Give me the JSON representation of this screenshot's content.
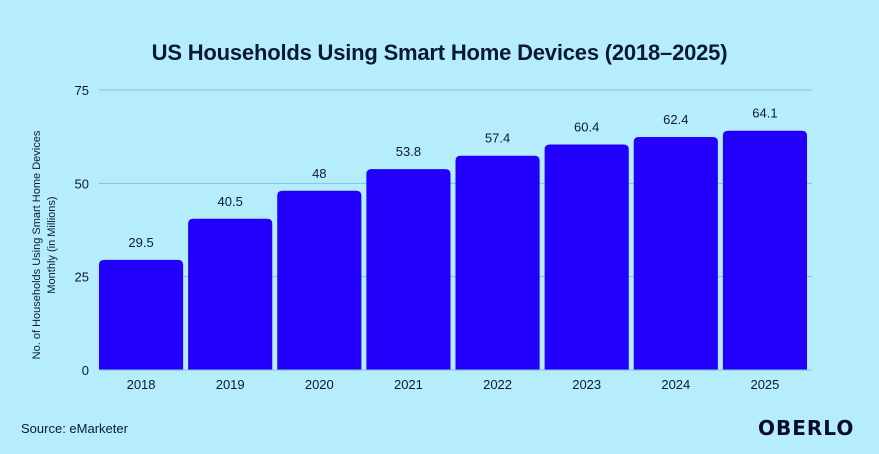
{
  "chart_data": {
    "type": "bar",
    "title": "US Households Using Smart Home Devices (2018–2025)",
    "xlabel": "",
    "ylabel": "No. of Households Using Smart Home Devices Monthly (in Millions)",
    "categories": [
      "2018",
      "2019",
      "2020",
      "2021",
      "2022",
      "2023",
      "2024",
      "2025"
    ],
    "values": [
      29.5,
      40.5,
      48,
      53.8,
      57.4,
      60.4,
      62.4,
      64.1
    ],
    "data_labels": [
      "29.5",
      "40.5",
      "48",
      "53.8",
      "57.4",
      "60.4",
      "62.4",
      "64.1"
    ],
    "ylim": [
      0,
      75
    ],
    "yticks": [
      0,
      25,
      50,
      75
    ],
    "grid": true,
    "bar_color": "#2200fb",
    "background": "#b5edfd"
  },
  "footer": {
    "source": "Source: eMarketer",
    "logo": "OBERLO"
  }
}
